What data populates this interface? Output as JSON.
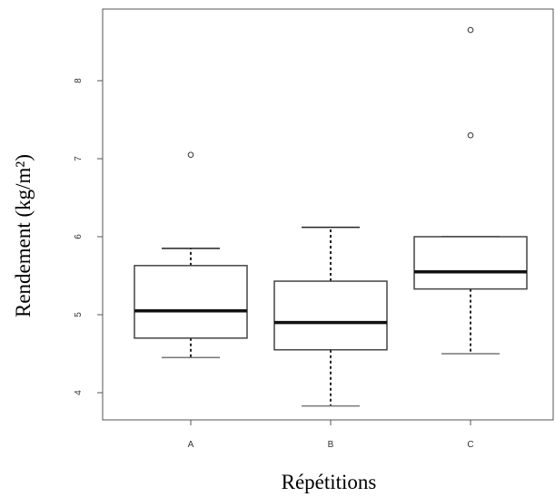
{
  "chart_data": {
    "type": "boxplot",
    "title": "",
    "xlabel": "Répétitions",
    "ylabel": "Rendement (kg/m²)",
    "categories": [
      "A",
      "B",
      "C"
    ],
    "ylim": [
      3.6,
      9.0
    ],
    "yticks": [
      4,
      5,
      6,
      7,
      8
    ],
    "grid": false,
    "legend": "none",
    "boxes": [
      {
        "category": "A",
        "whisker_low": 4.45,
        "q1": 4.7,
        "median": 5.05,
        "q3": 5.63,
        "whisker_high": 5.85,
        "outliers": [
          7.05
        ]
      },
      {
        "category": "B",
        "whisker_low": 3.83,
        "q1": 4.55,
        "median": 4.9,
        "q3": 5.43,
        "whisker_high": 6.12,
        "outliers": []
      },
      {
        "category": "C",
        "whisker_low": 4.5,
        "q1": 5.33,
        "median": 5.55,
        "q3": 6.0,
        "whisker_high": 6.0,
        "outliers": [
          7.3,
          8.65
        ]
      }
    ]
  }
}
